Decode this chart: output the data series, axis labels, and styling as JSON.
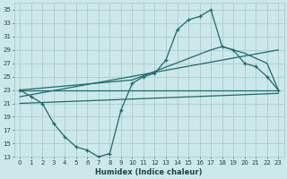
{
  "title": "",
  "xlabel": "Humidex (Indice chaleur)",
  "bg_color": "#cce8ea",
  "grid_color": "#aacccc",
  "line_color": "#1a6b6b",
  "xlim": [
    -0.5,
    23.5
  ],
  "ylim": [
    13,
    36
  ],
  "yticks": [
    13,
    15,
    17,
    19,
    21,
    23,
    25,
    27,
    29,
    31,
    33,
    35
  ],
  "xticks": [
    0,
    1,
    2,
    3,
    4,
    5,
    6,
    7,
    8,
    9,
    10,
    11,
    12,
    13,
    14,
    15,
    16,
    17,
    18,
    19,
    20,
    21,
    22,
    23
  ],
  "line1_x": [
    0,
    1,
    2,
    3,
    4,
    5,
    6,
    7,
    8,
    9,
    10,
    11,
    12,
    13,
    14,
    15,
    16,
    17,
    18,
    19,
    20,
    21,
    22,
    23
  ],
  "line1_y": [
    23,
    22,
    21,
    18,
    16,
    14.5,
    14,
    13,
    13.5,
    20,
    24,
    25,
    25.5,
    27.5,
    32,
    33.5,
    34,
    35,
    29.5,
    29,
    27,
    26.5,
    25,
    23
  ],
  "line2_x": [
    0,
    23
  ],
  "line2_y": [
    23,
    23
  ],
  "line3_x": [
    0,
    10,
    17,
    18,
    20,
    22,
    23
  ],
  "line3_y": [
    23,
    24.5,
    29,
    29.5,
    28.5,
    27,
    23
  ],
  "line4_x": [
    0,
    23
  ],
  "line4_y": [
    21,
    22.5
  ],
  "line5_x": [
    0,
    23
  ],
  "line5_y": [
    22,
    29
  ]
}
